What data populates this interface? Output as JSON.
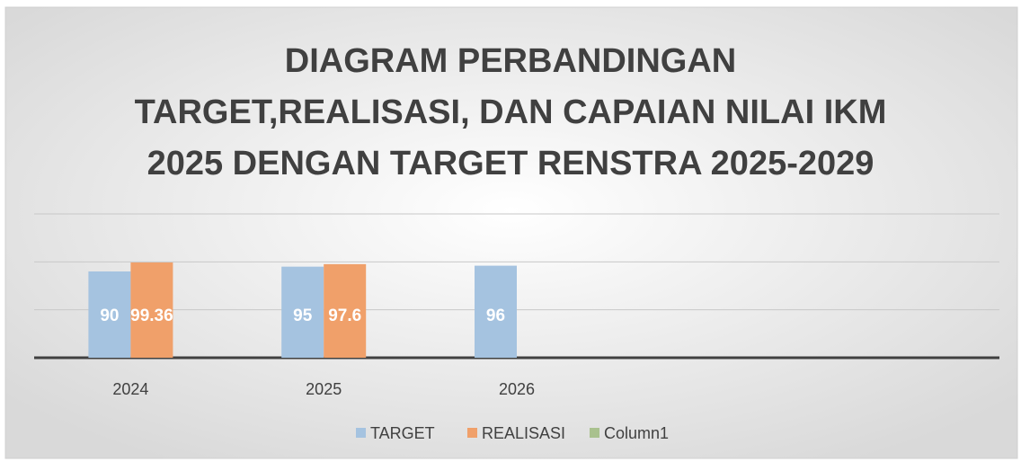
{
  "chart_data": {
    "type": "bar",
    "title": [
      "DIAGRAM PERBANDINGAN",
      "TARGET,REALISASI, DAN CAPAIAN NILAI IKM",
      "2025 DENGAN TARGET RENSTRA 2025-2029"
    ],
    "categories": [
      "2024",
      "2025",
      "2026",
      null,
      null
    ],
    "series": [
      {
        "name": "TARGET",
        "color": "#a5c3e0",
        "values": [
          90,
          95,
          96,
          null,
          null
        ]
      },
      {
        "name": "REALISASI",
        "color": "#f0a06a",
        "values": [
          99.36,
          97.6,
          null,
          null,
          null
        ]
      },
      {
        "name": "Column1",
        "color": "#a9c18e",
        "values": [
          null,
          null,
          null,
          null,
          null
        ]
      }
    ],
    "ylim": [
      0,
      150
    ],
    "yticks": [
      0,
      50,
      100,
      150
    ],
    "grid": true,
    "legend": "bottom"
  }
}
